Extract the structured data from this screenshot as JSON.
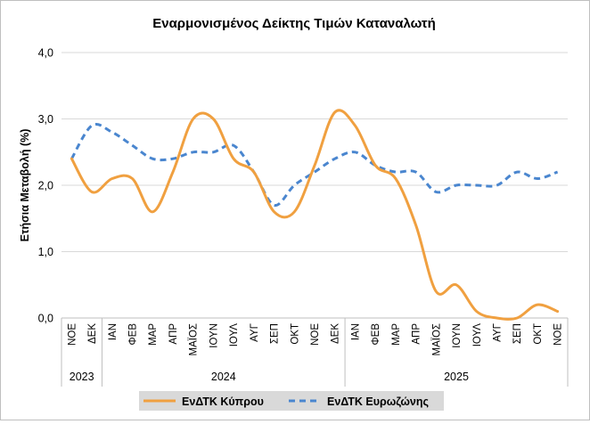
{
  "chart_data": {
    "type": "line",
    "title": "Εναρμονισμένος Δείκτης Τιμών Καταναλωτή",
    "xlabel": "",
    "ylabel": "Ετήσια Μεταβολή (%)",
    "ylim": [
      0,
      4
    ],
    "yticks": [
      "0,0",
      "1,0",
      "2,0",
      "3,0",
      "4,0"
    ],
    "ytick_values": [
      0,
      1,
      2,
      3,
      4
    ],
    "grid": true,
    "legend_position": "bottom",
    "categories": [
      "ΝΟΕ",
      "ΔΕΚ",
      "ΙΑΝ",
      "ΦΕΒ",
      "ΜΑΡ",
      "ΑΠΡ",
      "ΜΑΪΟΣ",
      "ΙΟΥΝ",
      "ΙΟΥΛ",
      "ΑΥΓ",
      "ΣΕΠ",
      "ΟΚΤ",
      "ΝΟΕ",
      "ΔΕΚ",
      "ΙΑΝ",
      "ΦΕΒ",
      "ΜΑΡ",
      "ΑΠΡ",
      "ΜΑΪΟΣ",
      "ΙΟΥΝ",
      "ΙΟΥΛ",
      "ΑΥΓ",
      "ΣΕΠ",
      "ΟΚΤ",
      "ΝΟΕ"
    ],
    "year_groups": [
      {
        "label": "2023",
        "start": 0,
        "end": 1
      },
      {
        "label": "2024",
        "start": 2,
        "end": 13
      },
      {
        "label": "2025",
        "start": 14,
        "end": 24
      }
    ],
    "series": [
      {
        "name": "ΕνΔΤΚ Κύπρου",
        "color": "#F0A040",
        "style": "solid",
        "values": [
          2.4,
          1.9,
          2.1,
          2.1,
          1.6,
          2.2,
          3.0,
          3.0,
          2.4,
          2.2,
          1.6,
          1.6,
          2.3,
          3.1,
          2.9,
          2.3,
          2.1,
          1.4,
          0.4,
          0.5,
          0.1,
          0.0,
          0.0,
          0.2,
          0.1
        ]
      },
      {
        "name": "ΕνΔΤΚ Ευρωζώνης",
        "color": "#4A86CF",
        "style": "dashed",
        "values": [
          2.4,
          2.9,
          2.8,
          2.6,
          2.4,
          2.4,
          2.5,
          2.5,
          2.6,
          2.2,
          1.7,
          2.0,
          2.2,
          2.4,
          2.5,
          2.3,
          2.2,
          2.2,
          1.9,
          2.0,
          2.0,
          2.0,
          2.2,
          2.1,
          2.2
        ]
      }
    ]
  }
}
